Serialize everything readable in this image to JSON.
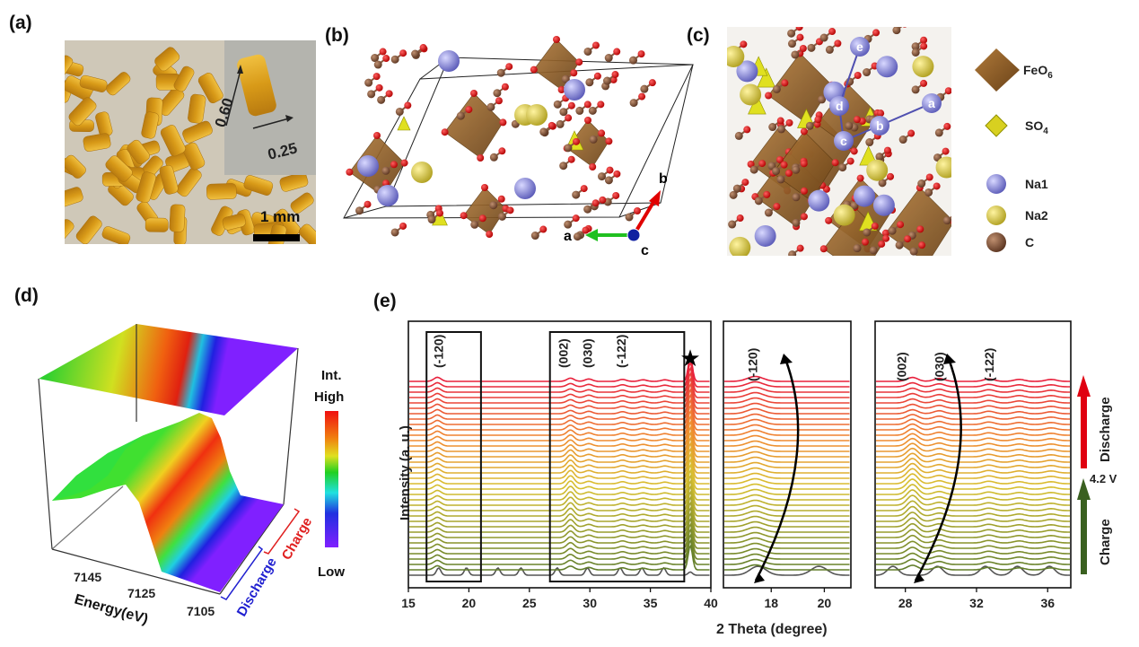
{
  "panels": {
    "a": "(a)",
    "b": "(b)",
    "c": "(c)",
    "d": "(d)",
    "e": "(e)"
  },
  "photo": {
    "inset_length": "0.60",
    "inset_width": "0.25",
    "scale_bar": "1 mm"
  },
  "structure_b": {
    "axis_a": "a",
    "axis_b": "b",
    "axis_c": "c"
  },
  "structure_c": {
    "sites": [
      "a",
      "b",
      "c",
      "d",
      "e"
    ]
  },
  "legend": [
    {
      "label": "FeO",
      "sub": "6",
      "icon": "octahedron-icon",
      "color": "#8a5a24"
    },
    {
      "label": "SO",
      "sub": "4",
      "icon": "tetrahedron-icon",
      "color": "#d8d020"
    },
    {
      "label": "Na1",
      "sub": "",
      "icon": "sphere-icon",
      "color": "#8888d8"
    },
    {
      "label": "Na2",
      "sub": "",
      "icon": "sphere-icon",
      "color": "#d8c440"
    },
    {
      "label": "C",
      "sub": "",
      "icon": "sphere-icon",
      "color": "#7a4a32"
    }
  ],
  "chart_data": [
    {
      "type": "surface",
      "xlabel": "Energy(eV)",
      "xticks": [
        7145,
        7125,
        7105
      ],
      "ylabels": {
        "discharge": "Discharge",
        "charge": "Charge"
      },
      "colorbar": {
        "title": "Int.",
        "high": "High",
        "low": "Low"
      },
      "edge_energy_eV": 7125
    },
    {
      "type": "line",
      "ylabel": "Intensity   (a. u.)",
      "xlabel": "2 Theta (degree)",
      "n_traces": 36,
      "subplots": [
        {
          "xlim": [
            15,
            40
          ],
          "xticks": [
            15,
            20,
            25,
            30,
            35,
            40
          ],
          "annotations": [
            {
              "text": "(-120)",
              "x": 17.5
            },
            {
              "text": "(002)",
              "x": 27.8
            },
            {
              "text": "(030)",
              "x": 29.8
            },
            {
              "text": "(-122)",
              "x": 32.6
            }
          ],
          "marker": {
            "symbol": "★",
            "x": 38.3
          },
          "boxes": [
            [
              16.5,
              21
            ],
            [
              26.7,
              37.8
            ]
          ]
        },
        {
          "xlim": [
            16.2,
            21
          ],
          "xticks": [
            18,
            20
          ],
          "annotations": [
            {
              "text": "(-120)",
              "x": 17.3
            }
          ]
        },
        {
          "xlim": [
            26.3,
            37.3
          ],
          "xticks": [
            28,
            32,
            36
          ],
          "annotations": [
            {
              "text": "(002)",
              "x": 27.8
            },
            {
              "text": "(030)",
              "x": 29.9
            },
            {
              "text": "(-122)",
              "x": 32.7
            }
          ]
        }
      ],
      "peaks_pristine": [
        17.5,
        19.8,
        22.4,
        24.3,
        27.3,
        29.8,
        32.5,
        34.3,
        36.1,
        38.3
      ],
      "arrows": {
        "discharge": "Discharge",
        "voltage": "4.2 V",
        "charge": "Charge"
      },
      "colors": {
        "pristine": "#555555",
        "start": "#5a7a2a",
        "mid": "#d8c030",
        "orange": "#f08a30",
        "end": "#e8203c"
      }
    }
  ]
}
